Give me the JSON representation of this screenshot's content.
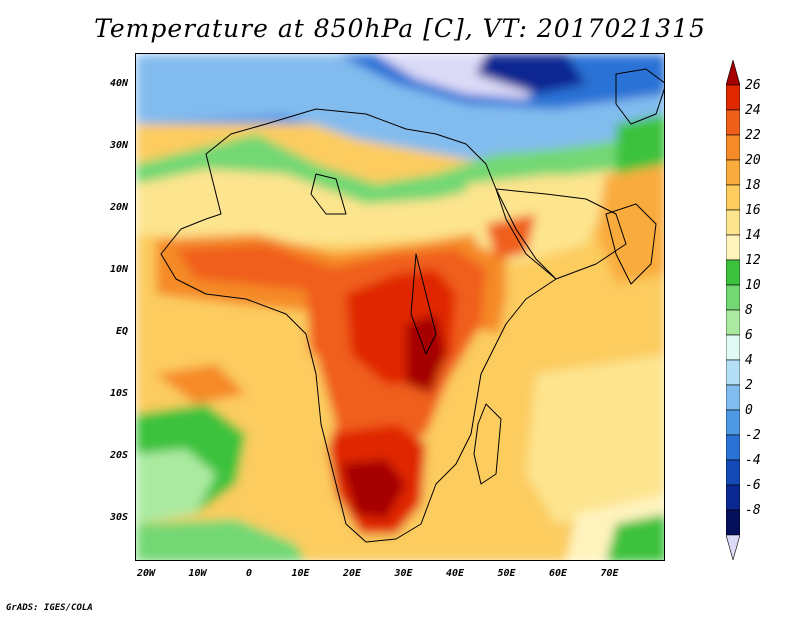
{
  "title": "Temperature at 850hPa [C], VT: 2017021315",
  "credit": "GrADS: IGES/COLA",
  "latitude_labels": [
    "40N",
    "30N",
    "20N",
    "10N",
    "EQ",
    "10S",
    "20S",
    "30S"
  ],
  "latitude_values": [
    40,
    30,
    20,
    10,
    0,
    -10,
    -20,
    -30
  ],
  "longitude_labels": [
    "20W",
    "10W",
    "0",
    "10E",
    "20E",
    "30E",
    "40E",
    "50E",
    "60E",
    "70E"
  ],
  "longitude_values": [
    -20,
    -10,
    0,
    10,
    20,
    30,
    40,
    50,
    60,
    70
  ],
  "colorbar": {
    "labels": [
      "26",
      "24",
      "22",
      "20",
      "18",
      "16",
      "14",
      "12",
      "10",
      "8",
      "6",
      "4",
      "2",
      "0",
      "-2",
      "-4",
      "-6",
      "-8"
    ],
    "colors": [
      "#a50000",
      "#e02800",
      "#f05f1a",
      "#f58a28",
      "#f9ac3d",
      "#fccc5e",
      "#fde48e",
      "#fff3bd",
      "#3dc23d",
      "#73d873",
      "#aaeaa0",
      "#e1fbf4",
      "#b4def5",
      "#82bcef",
      "#4f98e4",
      "#2a72d6",
      "#144ab8",
      "#0a2792",
      "#050f5a",
      "#dcdaf7"
    ]
  }
}
